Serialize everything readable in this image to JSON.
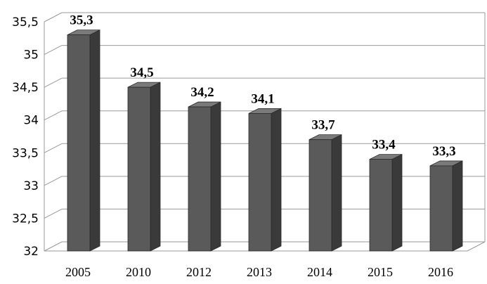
{
  "chart_data": {
    "type": "bar",
    "title": "",
    "xlabel": "",
    "ylabel": "",
    "categories": [
      "2005",
      "2010",
      "2012",
      "2013",
      "2014",
      "2015",
      "2016"
    ],
    "values": [
      35.3,
      34.5,
      34.2,
      34.1,
      33.7,
      33.4,
      33.3
    ],
    "value_labels": [
      "35,3",
      "34,5",
      "34,2",
      "34,1",
      "33,7",
      "33,4",
      "33,3"
    ],
    "ylim": [
      32,
      35.5
    ],
    "yticks": [
      32,
      32.5,
      33,
      33.5,
      34,
      34.5,
      35,
      35.5
    ],
    "ytick_labels": [
      "32",
      "32,5",
      "33",
      "33,5",
      "34",
      "34,5",
      "35",
      "35,5"
    ],
    "grid": true,
    "style": "3d-column",
    "colors": {
      "bar_front": "#5a5a5a",
      "bar_side": "#3a3a3a",
      "bar_top": "#7a7a7a",
      "grid": "#9a9a9a"
    }
  }
}
